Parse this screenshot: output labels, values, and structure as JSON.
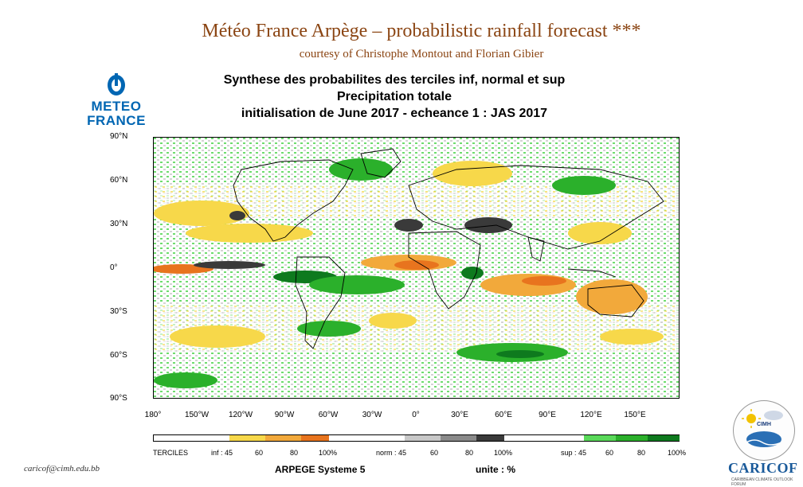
{
  "header": {
    "title": "Météo France Arpège – probabilistic rainfall forecast ***",
    "subtitle": "courtesy of Christophe Montout and Florian Gibier"
  },
  "plot": {
    "title_line1": "Synthese des probabilites des terciles inf, normal et sup",
    "title_line2": "Precipitation totale",
    "title_line3": "initialisation de June 2017  -  echeance 1 : JAS 2017"
  },
  "logo": {
    "word1": "METEO",
    "word2": "FRANCE"
  },
  "axes": {
    "lat_labels": [
      "90°N",
      "60°N",
      "30°N",
      "0°",
      "30°S",
      "60°S",
      "90°S"
    ],
    "lon_labels": [
      "180°",
      "150°W",
      "120°W",
      "90°W",
      "60°W",
      "30°W",
      "0°",
      "30°E",
      "60°E",
      "90°E",
      "120°E",
      "150°E"
    ]
  },
  "legend": {
    "title": "TERCILES",
    "inf_ticks": [
      "inf : 45",
      "60",
      "80",
      "100%"
    ],
    "norm_ticks": [
      "norm : 45",
      "60",
      "80",
      "100%"
    ],
    "sup_ticks": [
      "sup : 45",
      "60",
      "80",
      "100%"
    ],
    "colors": {
      "inf": [
        "#f7d84a",
        "#f2a93b",
        "#e8741e"
      ],
      "norm": [
        "#c8c8c8",
        "#8a8a8a",
        "#3a3a3a"
      ],
      "sup": [
        "#5ad95a",
        "#2bb02b",
        "#0e7a1e"
      ]
    }
  },
  "footer": {
    "system": "ARPEGE Systeme 5",
    "unit": "unite : %",
    "email": "caricof@cimh.edu.bb",
    "org_logo": "CIMH",
    "brand": "CARICOF",
    "brand_sub": "CARIBBEAN CLIMATE OUTLOOK FORUM"
  }
}
